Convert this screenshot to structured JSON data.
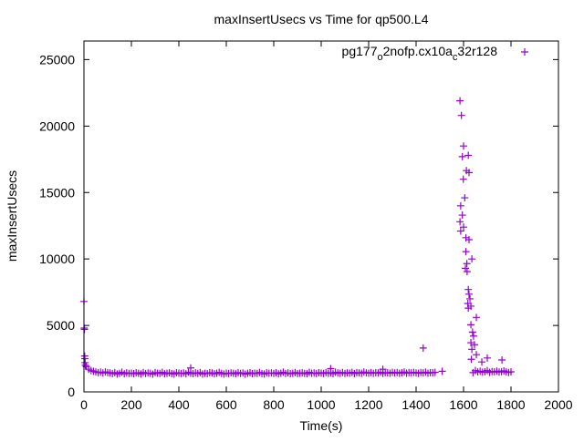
{
  "chart_data": {
    "type": "scatter",
    "title": "maxInsertUsecs vs Time for qp500.L4",
    "xlabel": "Time(s)",
    "ylabel": "maxInsertUsecs",
    "xlim": [
      0,
      2000
    ],
    "ylim": [
      0,
      26400
    ],
    "xticks": [
      0,
      200,
      400,
      600,
      800,
      1000,
      1200,
      1400,
      1600,
      1800,
      2000
    ],
    "yticks": [
      0,
      5000,
      10000,
      15000,
      20000,
      25000
    ],
    "grid": false,
    "legend_position": "top-right",
    "color": "#9400d3",
    "series": [
      {
        "name": "pg177_o2nofp.cx10a_c32r128",
        "name_parts": [
          "pg177",
          "o",
          "2nofp.cx10a",
          "c",
          "32r128"
        ],
        "points": [
          [
            0,
            6800
          ],
          [
            1,
            4800
          ],
          [
            2,
            4700
          ],
          [
            3,
            2700
          ],
          [
            4,
            2500
          ],
          [
            5,
            2200
          ],
          [
            6,
            2000
          ],
          [
            450,
            1800
          ],
          [
            1040,
            1750
          ],
          [
            1260,
            1700
          ],
          [
            1430,
            3300
          ],
          [
            1510,
            1550
          ],
          [
            1585,
            21900
          ],
          [
            1591,
            20800
          ],
          [
            1600,
            18500
          ],
          [
            1595,
            17700
          ],
          [
            1620,
            17800
          ],
          [
            1612,
            16650
          ],
          [
            1623,
            16500
          ],
          [
            1599,
            16000
          ],
          [
            1605,
            14600
          ],
          [
            1588,
            14000
          ],
          [
            1595,
            13300
          ],
          [
            1585,
            12800
          ],
          [
            1600,
            12400
          ],
          [
            1588,
            12100
          ],
          [
            1610,
            11600
          ],
          [
            1623,
            11450
          ],
          [
            1610,
            10550
          ],
          [
            1635,
            10000
          ],
          [
            1614,
            9650
          ],
          [
            1608,
            9300
          ],
          [
            1615,
            9050
          ],
          [
            1620,
            7700
          ],
          [
            1623,
            7350
          ],
          [
            1627,
            7000
          ],
          [
            1618,
            6650
          ],
          [
            1631,
            6450
          ],
          [
            1620,
            6300
          ],
          [
            1654,
            5600
          ],
          [
            1631,
            5050
          ],
          [
            1638,
            4500
          ],
          [
            1642,
            4200
          ],
          [
            1631,
            3700
          ],
          [
            1646,
            3550
          ],
          [
            1635,
            3200
          ],
          [
            1654,
            2800
          ],
          [
            1633,
            2450
          ],
          [
            1677,
            2250
          ],
          [
            1700,
            2550
          ],
          [
            1762,
            2400
          ]
        ],
        "baseline_segments": [
          {
            "x_start": 10,
            "x_step": 10,
            "values": [
              1900,
              1700,
              1600,
              1550,
              1500,
              1450,
              1480,
              1420,
              1500,
              1450,
              1420,
              1380,
              1450,
              1350,
              1400,
              1480,
              1360,
              1430,
              1390,
              1410,
              1370,
              1440,
              1400,
              1350,
              1460,
              1380,
              1420,
              1400,
              1340,
              1450,
              1410,
              1390,
              1470,
              1360,
              1400,
              1430,
              1380,
              1350,
              1440,
              1410,
              1390,
              1420,
              1360,
              1480,
              1400,
              1370,
              1430,
              1390,
              1450,
              1350,
              1400,
              1380,
              1440,
              1420,
              1360,
              1400,
              1470,
              1390,
              1350,
              1410,
              1380,
              1430,
              1400,
              1360,
              1450,
              1390,
              1420,
              1340,
              1400,
              1440,
              1370,
              1410,
              1390,
              1460,
              1380,
              1350,
              1430,
              1400,
              1420,
              1390,
              1440,
              1360,
              1410,
              1480,
              1390,
              1420,
              1370,
              1400,
              1450,
              1380,
              1410,
              1430,
              1390,
              1360,
              1470,
              1400,
              1420,
              1380,
              1440,
              1410,
              1390,
              1450,
              1400,
              1430,
              1370,
              1480,
              1420,
              1400,
              1460,
              1390,
              1430,
              1410,
              1470,
              1380,
              1450,
              1420,
              1400,
              1490,
              1430,
              1410,
              1460,
              1400,
              1440,
              1420,
              1480,
              1390,
              1450,
              1430,
              1410,
              1470,
              1420,
              1460,
              1400,
              1440,
              1490,
              1410,
              1450,
              1430,
              1470,
              1420,
              1400,
              1460,
              1430,
              1480,
              1410,
              1450,
              1440,
              1470
            ]
          },
          {
            "x_start": 1640,
            "x_step": 10,
            "values": [
              1450,
              1600,
              1500,
              1550,
              1480,
              1520,
              1600,
              1470,
              1530,
              1500,
              1560,
              1490,
              1520,
              1580,
              1500,
              1460,
              1510
            ]
          }
        ]
      }
    ]
  }
}
